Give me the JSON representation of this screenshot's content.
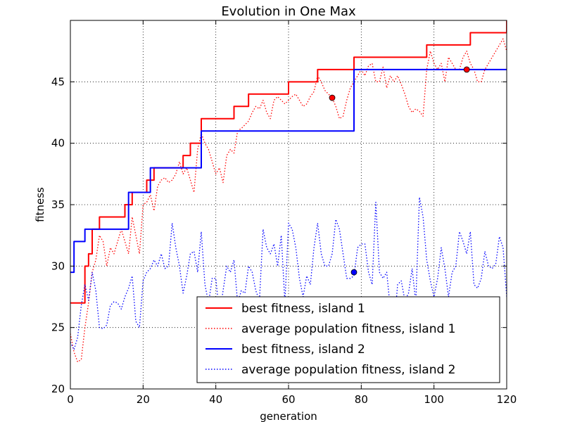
{
  "chart_data": {
    "type": "line",
    "title": "Evolution in One Max",
    "xlabel": "generation",
    "ylabel": "fitness",
    "xlim": [
      0,
      120
    ],
    "ylim": [
      20,
      50
    ],
    "xticks": [
      0,
      20,
      40,
      60,
      80,
      100,
      120
    ],
    "yticks": [
      20,
      25,
      30,
      35,
      40,
      45
    ],
    "grid": true,
    "legend_position": "bottom-right",
    "series": [
      {
        "name": "best fitness, island 1",
        "color": "#ff0000",
        "style": "solid",
        "step": true,
        "x": [
          0,
          3,
          4,
          5,
          6,
          8,
          13,
          15,
          17,
          20,
          21,
          23,
          30,
          31,
          32,
          33,
          35,
          36,
          43,
          45,
          48,
          49,
          59,
          60,
          67,
          68,
          77,
          78,
          97,
          98,
          109,
          110,
          119,
          120
        ],
        "y": [
          27,
          27,
          30,
          31,
          33,
          34,
          34,
          35,
          36,
          36,
          37,
          38,
          38,
          39,
          39,
          40,
          40,
          42,
          42,
          43,
          43,
          44,
          44,
          45,
          45,
          46,
          46,
          47,
          47,
          48,
          48,
          49,
          49,
          50
        ]
      },
      {
        "name": "average population fitness, island 1",
        "color": "#ff0000",
        "style": "dotted",
        "x": [
          0,
          1,
          2,
          3,
          4,
          5,
          6,
          7,
          8,
          9,
          10,
          11,
          12,
          13,
          14,
          15,
          16,
          17,
          18,
          19,
          20,
          21,
          22,
          23,
          24,
          25,
          26,
          27,
          28,
          29,
          30,
          31,
          32,
          33,
          34,
          35,
          36,
          37,
          38,
          39,
          40,
          41,
          42,
          43,
          44,
          45,
          46,
          47,
          48,
          49,
          50,
          51,
          52,
          53,
          54,
          55,
          56,
          57,
          58,
          59,
          60,
          61,
          62,
          63,
          64,
          65,
          66,
          67,
          68,
          69,
          70,
          71,
          72,
          73,
          74,
          75,
          76,
          77,
          78,
          79,
          80,
          81,
          82,
          83,
          84,
          85,
          86,
          87,
          88,
          89,
          90,
          91,
          92,
          93,
          94,
          95,
          96,
          97,
          98,
          99,
          100,
          101,
          102,
          103,
          104,
          105,
          106,
          107,
          108,
          109,
          110,
          111,
          112,
          113,
          114,
          115,
          116,
          117,
          118,
          119,
          120
        ],
        "y": [
          24.5,
          23,
          22.2,
          22.4,
          25,
          27,
          29.5,
          30.5,
          32.5,
          32,
          30,
          31.5,
          31,
          32,
          33,
          32,
          31,
          34,
          32.5,
          31,
          35,
          35.2,
          35.8,
          34.5,
          36.5,
          37,
          37.2,
          36.8,
          37,
          37.5,
          38.5,
          37.5,
          38,
          37,
          36,
          39.5,
          40.8,
          40,
          39.5,
          38.5,
          37.5,
          38,
          36.8,
          39,
          39.5,
          39.2,
          41,
          41.2,
          41.5,
          41.8,
          42.5,
          43,
          42.8,
          43.5,
          42.5,
          42,
          43.5,
          43.8,
          43.5,
          43.2,
          43.5,
          43.8,
          44,
          43.5,
          43,
          43.2,
          43.8,
          44.2,
          45.5,
          45,
          44.3,
          44,
          43.7,
          43,
          42,
          42.2,
          43.5,
          44.5,
          45,
          45.5,
          46,
          45.5,
          46.3,
          46.5,
          45,
          45,
          46.2,
          44.5,
          45.5,
          45,
          45.5,
          44.8,
          44,
          43,
          42.5,
          42.8,
          42.6,
          42.2,
          46,
          47.5,
          46.5,
          46,
          46.5,
          45,
          47,
          46.5,
          46,
          46,
          47,
          47.5,
          46.5,
          46,
          45,
          45,
          46,
          46.5,
          47,
          47.5,
          48,
          48.5,
          47.5
        ]
      },
      {
        "name": "best fitness, island 2",
        "color": "#0000ff",
        "style": "solid",
        "step": true,
        "x": [
          0,
          1,
          4,
          16,
          22,
          36,
          78,
          120
        ],
        "y": [
          29.5,
          32,
          33,
          36,
          38,
          41,
          46,
          46
        ]
      },
      {
        "name": "average population fitness, island 2",
        "color": "#0000ff",
        "style": "dotted",
        "x": [
          0,
          1,
          2,
          3,
          4,
          5,
          6,
          7,
          8,
          9,
          10,
          11,
          12,
          13,
          14,
          15,
          16,
          17,
          18,
          19,
          20,
          21,
          22,
          23,
          24,
          25,
          26,
          27,
          28,
          29,
          30,
          31,
          32,
          33,
          34,
          35,
          36,
          37,
          38,
          39,
          40,
          41,
          42,
          43,
          44,
          45,
          46,
          47,
          48,
          49,
          50,
          51,
          52,
          53,
          54,
          55,
          56,
          57,
          58,
          59,
          60,
          61,
          62,
          63,
          64,
          65,
          66,
          67,
          68,
          69,
          70,
          71,
          72,
          73,
          74,
          75,
          76,
          77,
          78,
          79,
          80,
          81,
          82,
          83,
          84,
          85,
          86,
          87,
          88,
          89,
          90,
          91,
          92,
          93,
          94,
          95,
          96,
          97,
          98,
          99,
          100,
          101,
          102,
          103,
          104,
          105,
          106,
          107,
          108,
          109,
          110,
          111,
          112,
          113,
          114,
          115,
          116,
          117,
          118,
          119,
          120
        ],
        "y": [
          23.8,
          23.2,
          24.2,
          26.8,
          28.5,
          27.2,
          29.5,
          28,
          25,
          24.9,
          25.2,
          26.8,
          27.1,
          27,
          26.5,
          27.5,
          28.2,
          29.2,
          25.5,
          25,
          28.8,
          29.5,
          29.8,
          30.5,
          30,
          31,
          29.8,
          30,
          33.5,
          31.5,
          30,
          27.8,
          29.2,
          31,
          31.2,
          29.5,
          32.8,
          28.5,
          27,
          29,
          29,
          26,
          28,
          30,
          29.5,
          30.5,
          27,
          28,
          27.8,
          30,
          29.5,
          28,
          27.2,
          33,
          31.5,
          31,
          31.8,
          30,
          32.5,
          27,
          33.5,
          33,
          31.5,
          29,
          27.5,
          29.2,
          28.5,
          31.5,
          33.5,
          31,
          30,
          30,
          31,
          33.8,
          33,
          31,
          29,
          29,
          29.2,
          31.5,
          31.8,
          31.8,
          29.5,
          28.5,
          35.2,
          29.5,
          29,
          29.5,
          26.5,
          25,
          28.5,
          28.8,
          27.2,
          27.8,
          29.8,
          27,
          35.6,
          34,
          30.5,
          28.8,
          27.5,
          29,
          31.5,
          29.8,
          27.5,
          29.5,
          30,
          32.8,
          32,
          31,
          32.8,
          28.5,
          28.2,
          29,
          31.2,
          30,
          29.8,
          30.2,
          32.4,
          31.5,
          27.5
        ]
      }
    ],
    "markers": [
      {
        "x": 72,
        "y": 43.7,
        "color": "#ff0000"
      },
      {
        "x": 109,
        "y": 46,
        "color": "#ff0000"
      },
      {
        "x": 78,
        "y": 29.5,
        "color": "#0000ff"
      }
    ]
  }
}
